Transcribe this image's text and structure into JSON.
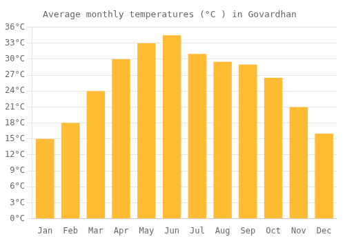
{
  "chart_data": {
    "type": "bar",
    "title": "Average monthly temperatures (°C ) in Govardhan",
    "categories": [
      "Jan",
      "Feb",
      "Mar",
      "Apr",
      "May",
      "Jun",
      "Jul",
      "Aug",
      "Sep",
      "Oct",
      "Nov",
      "Dec"
    ],
    "values": [
      15,
      18,
      24,
      30,
      33,
      34.5,
      31,
      29.5,
      29,
      26.5,
      21,
      16
    ],
    "color": "#FFBB33",
    "ylim": [
      0,
      36
    ],
    "yticks": [
      {
        "value": 0,
        "label": "0°C"
      },
      {
        "value": 3,
        "label": "3°C"
      },
      {
        "value": 6,
        "label": "6°C"
      },
      {
        "value": 9,
        "label": "9°C"
      },
      {
        "value": 12,
        "label": "12°C"
      },
      {
        "value": 15,
        "label": "15°C"
      },
      {
        "value": 18,
        "label": "18°C"
      },
      {
        "value": 21,
        "label": "21°C"
      },
      {
        "value": 24,
        "label": "24°C"
      },
      {
        "value": 27,
        "label": "27°C"
      },
      {
        "value": 30,
        "label": "30°C"
      },
      {
        "value": 33,
        "label": "33°C"
      },
      {
        "value": 36,
        "label": "36°C"
      }
    ],
    "grid": true
  }
}
